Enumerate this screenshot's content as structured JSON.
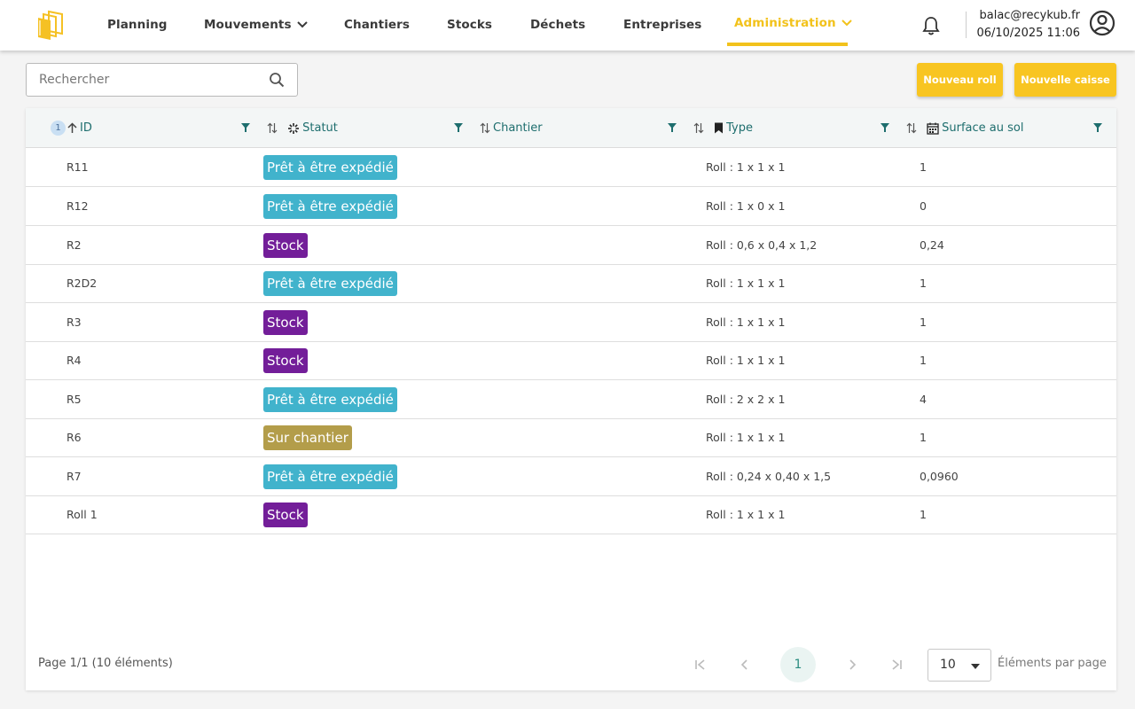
{
  "nav": {
    "items": [
      {
        "label": "Planning"
      },
      {
        "label": "Mouvements"
      },
      {
        "label": "Chantiers"
      },
      {
        "label": "Stocks"
      },
      {
        "label": "Déchets"
      },
      {
        "label": "Entreprises"
      },
      {
        "label": "Administration"
      }
    ],
    "active_color": "#f2c21b"
  },
  "user": {
    "email": "balac@recykub.fr",
    "datetime": "06/10/2025 11:06"
  },
  "search": {
    "placeholder": "Rechercher",
    "value": ""
  },
  "actions": {
    "new_roll": "Nouveau roll",
    "new_box": "Nouvelle caisse",
    "accent": "#f8c521"
  },
  "table": {
    "sort_order_badge": "1",
    "columns": [
      {
        "label": "ID",
        "icon": "sort-ascending-icon"
      },
      {
        "label": "Statut",
        "icon": "spinner-icon"
      },
      {
        "label": "Chantier",
        "icon": "sort-icon"
      },
      {
        "label": "Type",
        "icon": "bookmark-icon"
      },
      {
        "label": "Surface au sol",
        "icon": "calendar-icon"
      }
    ],
    "rows": [
      {
        "id": "R11",
        "status": "Prêt à être expédié",
        "status_kind": "ready",
        "chantier": "",
        "type": "Roll : 1 x 1 x 1",
        "surface": "1"
      },
      {
        "id": "R12",
        "status": "Prêt à être expédié",
        "status_kind": "ready",
        "chantier": "",
        "type": "Roll : 1 x 0 x 1",
        "surface": "0"
      },
      {
        "id": "R2",
        "status": "Stock",
        "status_kind": "stock",
        "chantier": "",
        "type": "Roll : 0,6 x 0,4 x 1,2",
        "surface": "0,24"
      },
      {
        "id": "R2D2",
        "status": "Prêt à être expédié",
        "status_kind": "ready",
        "chantier": "",
        "type": "Roll : 1 x 1 x 1",
        "surface": "1"
      },
      {
        "id": "R3",
        "status": "Stock",
        "status_kind": "stock",
        "chantier": "",
        "type": "Roll : 1 x 1 x 1",
        "surface": "1"
      },
      {
        "id": "R4",
        "status": "Stock",
        "status_kind": "stock",
        "chantier": "",
        "type": "Roll : 1 x 1 x 1",
        "surface": "1"
      },
      {
        "id": "R5",
        "status": "Prêt à être expédié",
        "status_kind": "ready",
        "chantier": "",
        "type": "Roll : 2 x 2 x 1",
        "surface": "4"
      },
      {
        "id": "R6",
        "status": "Sur chantier",
        "status_kind": "site",
        "chantier": "",
        "type": "Roll : 1 x 1 x 1",
        "surface": "1"
      },
      {
        "id": "R7",
        "status": "Prêt à être expédié",
        "status_kind": "ready",
        "chantier": "",
        "type": "Roll : 0,24 x 0,40 x 1,5",
        "surface": "0,0960"
      },
      {
        "id": "Roll 1",
        "status": "Stock",
        "status_kind": "stock",
        "chantier": "",
        "type": "Roll : 1 x 1 x 1",
        "surface": "1"
      }
    ],
    "status_colors": {
      "ready": "#41b3cc",
      "stock": "#731e99",
      "site": "#b39d4a"
    }
  },
  "footer": {
    "page_info": "Page 1/1 (10 éléments)",
    "current_page": "1",
    "per_page": "10",
    "per_page_label": "Éléments par page"
  }
}
